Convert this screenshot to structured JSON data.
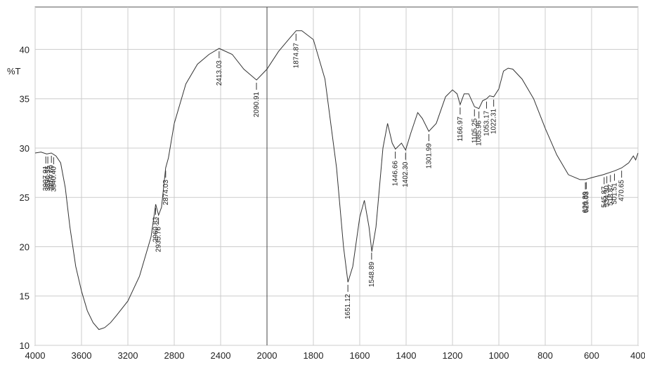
{
  "chart_data": {
    "type": "line",
    "y_label": "%T",
    "x": [
      4000,
      3950,
      3900,
      3860,
      3820,
      3780,
      3740,
      3700,
      3650,
      3600,
      3550,
      3500,
      3450,
      3400,
      3350,
      3300,
      3200,
      3100,
      3000,
      2960,
      2935,
      2910,
      2874,
      2850,
      2800,
      2700,
      2600,
      2500,
      2413,
      2300,
      2200,
      2090,
      2000,
      1950,
      1900,
      1874,
      1850,
      1800,
      1750,
      1700,
      1670,
      1651,
      1630,
      1600,
      1580,
      1560,
      1548,
      1530,
      1500,
      1480,
      1460,
      1446,
      1420,
      1402,
      1380,
      1350,
      1330,
      1302,
      1270,
      1230,
      1200,
      1180,
      1167,
      1150,
      1130,
      1105,
      1086,
      1070,
      1053,
      1040,
      1022,
      1000,
      980,
      960,
      940,
      900,
      850,
      800,
      750,
      700,
      650,
      627,
      600,
      550,
      500,
      470,
      440,
      420,
      410,
      400
    ],
    "series": [
      {
        "color": "#333333",
        "values": [
          29.5,
          29.6,
          29.4,
          29.5,
          29.2,
          28.5,
          26,
          22,
          18,
          15.5,
          13.5,
          12.3,
          11.6,
          11.8,
          12.3,
          13,
          14.5,
          17,
          21,
          24.3,
          23.2,
          24,
          28,
          29,
          32.5,
          36.5,
          38.5,
          39.5,
          40.1,
          39.5,
          38,
          36.9,
          38,
          39.8,
          41.2,
          41.9,
          41.9,
          41,
          37,
          28,
          20,
          16.4,
          18,
          23,
          24.7,
          22,
          19.5,
          22,
          30,
          32.5,
          30.5,
          29.9,
          30.5,
          29.8,
          31.5,
          33.6,
          33,
          31.7,
          32.5,
          35.2,
          35.9,
          35.5,
          34.4,
          35.5,
          35.5,
          34.2,
          34,
          34.8,
          35,
          35.3,
          35.2,
          36,
          37.8,
          38.1,
          38,
          37,
          35,
          32,
          29.3,
          27.3,
          26.8,
          26.8,
          27,
          27.3,
          27.7,
          28,
          28.5,
          29.2,
          28.8,
          29.5
        ]
      }
    ],
    "xlim": [
      4000,
      400
    ],
    "x_scale_break": 2000,
    "xticks": [
      4000,
      3600,
      3200,
      2800,
      2400,
      2000,
      1800,
      1600,
      1400,
      1200,
      1000,
      800,
      600,
      400
    ],
    "ylim": [
      10,
      44.3
    ],
    "yticks": [
      10,
      15,
      20,
      25,
      30,
      35,
      40
    ],
    "grid": true,
    "peaks": [
      3907.91,
      3890.55,
      3859.69,
      {
        "value": 3840.4,
        "label": "3840.40"
      },
      2960.83,
      2935.76,
      2874.03,
      2413.03,
      2090.91,
      1874.87,
      1651.12,
      1548.89,
      1446.66,
      {
        "value": 1402.3,
        "label": "1402.30"
      },
      1301.99,
      1166.97,
      1105.25,
      1085.96,
      1053.17,
      1022.31,
      626.89,
      623.03,
      545.87,
      {
        "value": 534.3,
        "label": "534.30"
      },
      518.87,
      501.51,
      470.65
    ]
  }
}
